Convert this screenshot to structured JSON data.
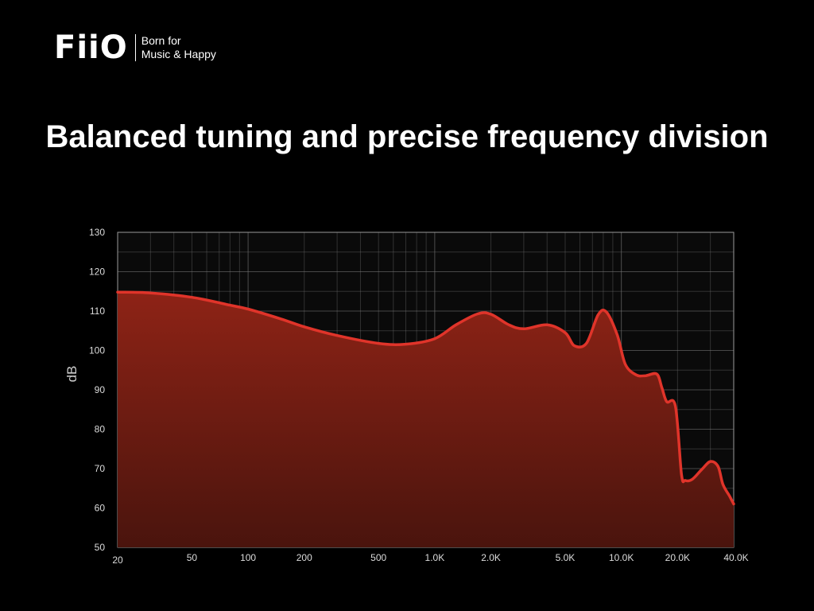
{
  "brand": {
    "logo": "FiiO",
    "tagline_line1": "Born for",
    "tagline_line2": "Music & Happy"
  },
  "headline": "Balanced tuning and precise frequency division",
  "colors": {
    "background": "#000000",
    "curve": "#e0342a",
    "fill_top": "#8e2316",
    "fill_bottom": "#4a140d",
    "grid": "#7a7a7a"
  },
  "chart_data": {
    "type": "area",
    "title": "",
    "xlabel": "",
    "ylabel": "dB",
    "x_scale": "log",
    "xlim": [
      20,
      40000
    ],
    "ylim": [
      50,
      130
    ],
    "grid": true,
    "y_ticks": [
      130,
      120,
      110,
      100,
      90,
      80,
      70,
      60,
      50
    ],
    "x_ticks": [
      {
        "value": 20,
        "label": "20"
      },
      {
        "value": 50,
        "label": "50"
      },
      {
        "value": 100,
        "label": "100"
      },
      {
        "value": 200,
        "label": "200"
      },
      {
        "value": 500,
        "label": "500"
      },
      {
        "value": 1000,
        "label": "1.0K"
      },
      {
        "value": 2000,
        "label": "2.0K"
      },
      {
        "value": 5000,
        "label": "5.0K"
      },
      {
        "value": 10000,
        "label": "10.0K"
      },
      {
        "value": 20000,
        "label": "20.0K"
      },
      {
        "value": 40000,
        "label": "40.0K"
      }
    ],
    "series": [
      {
        "x": [
          20,
          30,
          50,
          80,
          100,
          150,
          200,
          300,
          500,
          700,
          1000,
          1300,
          1700,
          2000,
          2500,
          3000,
          4000,
          5000,
          5600,
          6500,
          7500,
          8300,
          9500,
          10500,
          12000,
          13500,
          15500,
          16500,
          17500,
          19500,
          21000,
          22000,
          24000,
          27000,
          30000,
          33000,
          35000,
          38000,
          40000
        ],
        "y": [
          114.8,
          114.6,
          113.5,
          111.5,
          110.5,
          108.0,
          106.0,
          103.8,
          101.8,
          101.6,
          103.0,
          106.5,
          109.3,
          109.2,
          106.5,
          105.5,
          106.5,
          104.5,
          101.2,
          101.8,
          109.0,
          109.8,
          104.0,
          96.5,
          93.8,
          93.6,
          94.0,
          90.5,
          87.0,
          85.8,
          68.5,
          67.0,
          67.3,
          69.8,
          71.8,
          70.5,
          66.0,
          63.0,
          61.0
        ]
      }
    ]
  }
}
